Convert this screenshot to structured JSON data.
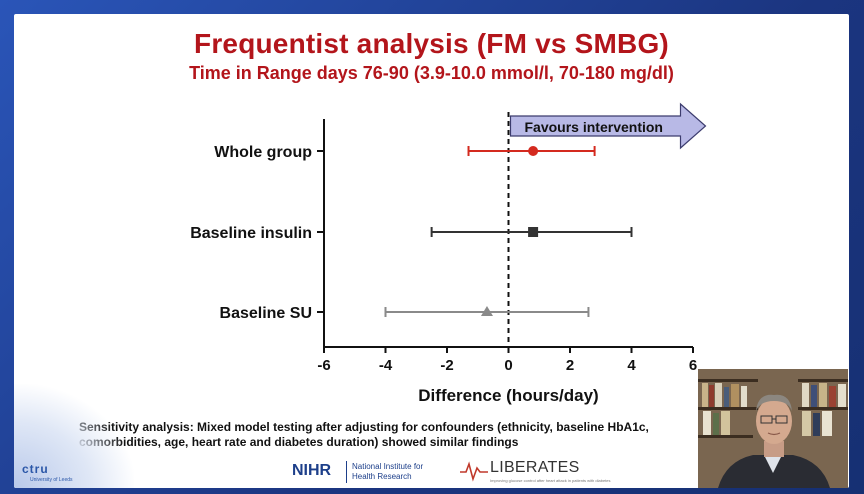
{
  "slide": {
    "title": "Frequentist analysis (FM vs SMBG)",
    "subtitle": "Time in Range days 76-90 (3.9-10.0 mmol/l, 70-180 mg/dl)",
    "footnote": "Sensitivity analysis: Mixed model testing after adjusting for confounders (ethnicity, baseline HbA1c, comorbidities, age, heart rate and diabetes duration) showed similar findings"
  },
  "chart_data": {
    "type": "forest",
    "xlabel": "Difference (hours/day)",
    "xlim": [
      -6,
      6
    ],
    "xticks": [
      "-6",
      "-4",
      "-2",
      "0",
      "2",
      "4",
      "6"
    ],
    "reference_line": 0,
    "arrow_label": "Favours intervention",
    "rows": [
      {
        "label": "Whole group",
        "estimate": 0.8,
        "lower": -1.3,
        "upper": 2.8,
        "marker": "circle",
        "color": "#d42a1f"
      },
      {
        "label": "Baseline insulin",
        "estimate": 0.8,
        "lower": -2.5,
        "upper": 4.0,
        "marker": "square",
        "color": "#333333"
      },
      {
        "label": "Baseline SU",
        "estimate": -0.7,
        "lower": -4.0,
        "upper": 2.6,
        "marker": "triangle",
        "color": "#8a8a8a"
      }
    ]
  },
  "logos": {
    "ctru": "ctru",
    "ctru_sub": "University of Leeds",
    "nihr": "NIHR",
    "nihr_name": "National Institute for Health Research",
    "liberates": "LIBERATES",
    "liberates_tag": "Improving glucose control after heart attack in patients with diabetes"
  }
}
